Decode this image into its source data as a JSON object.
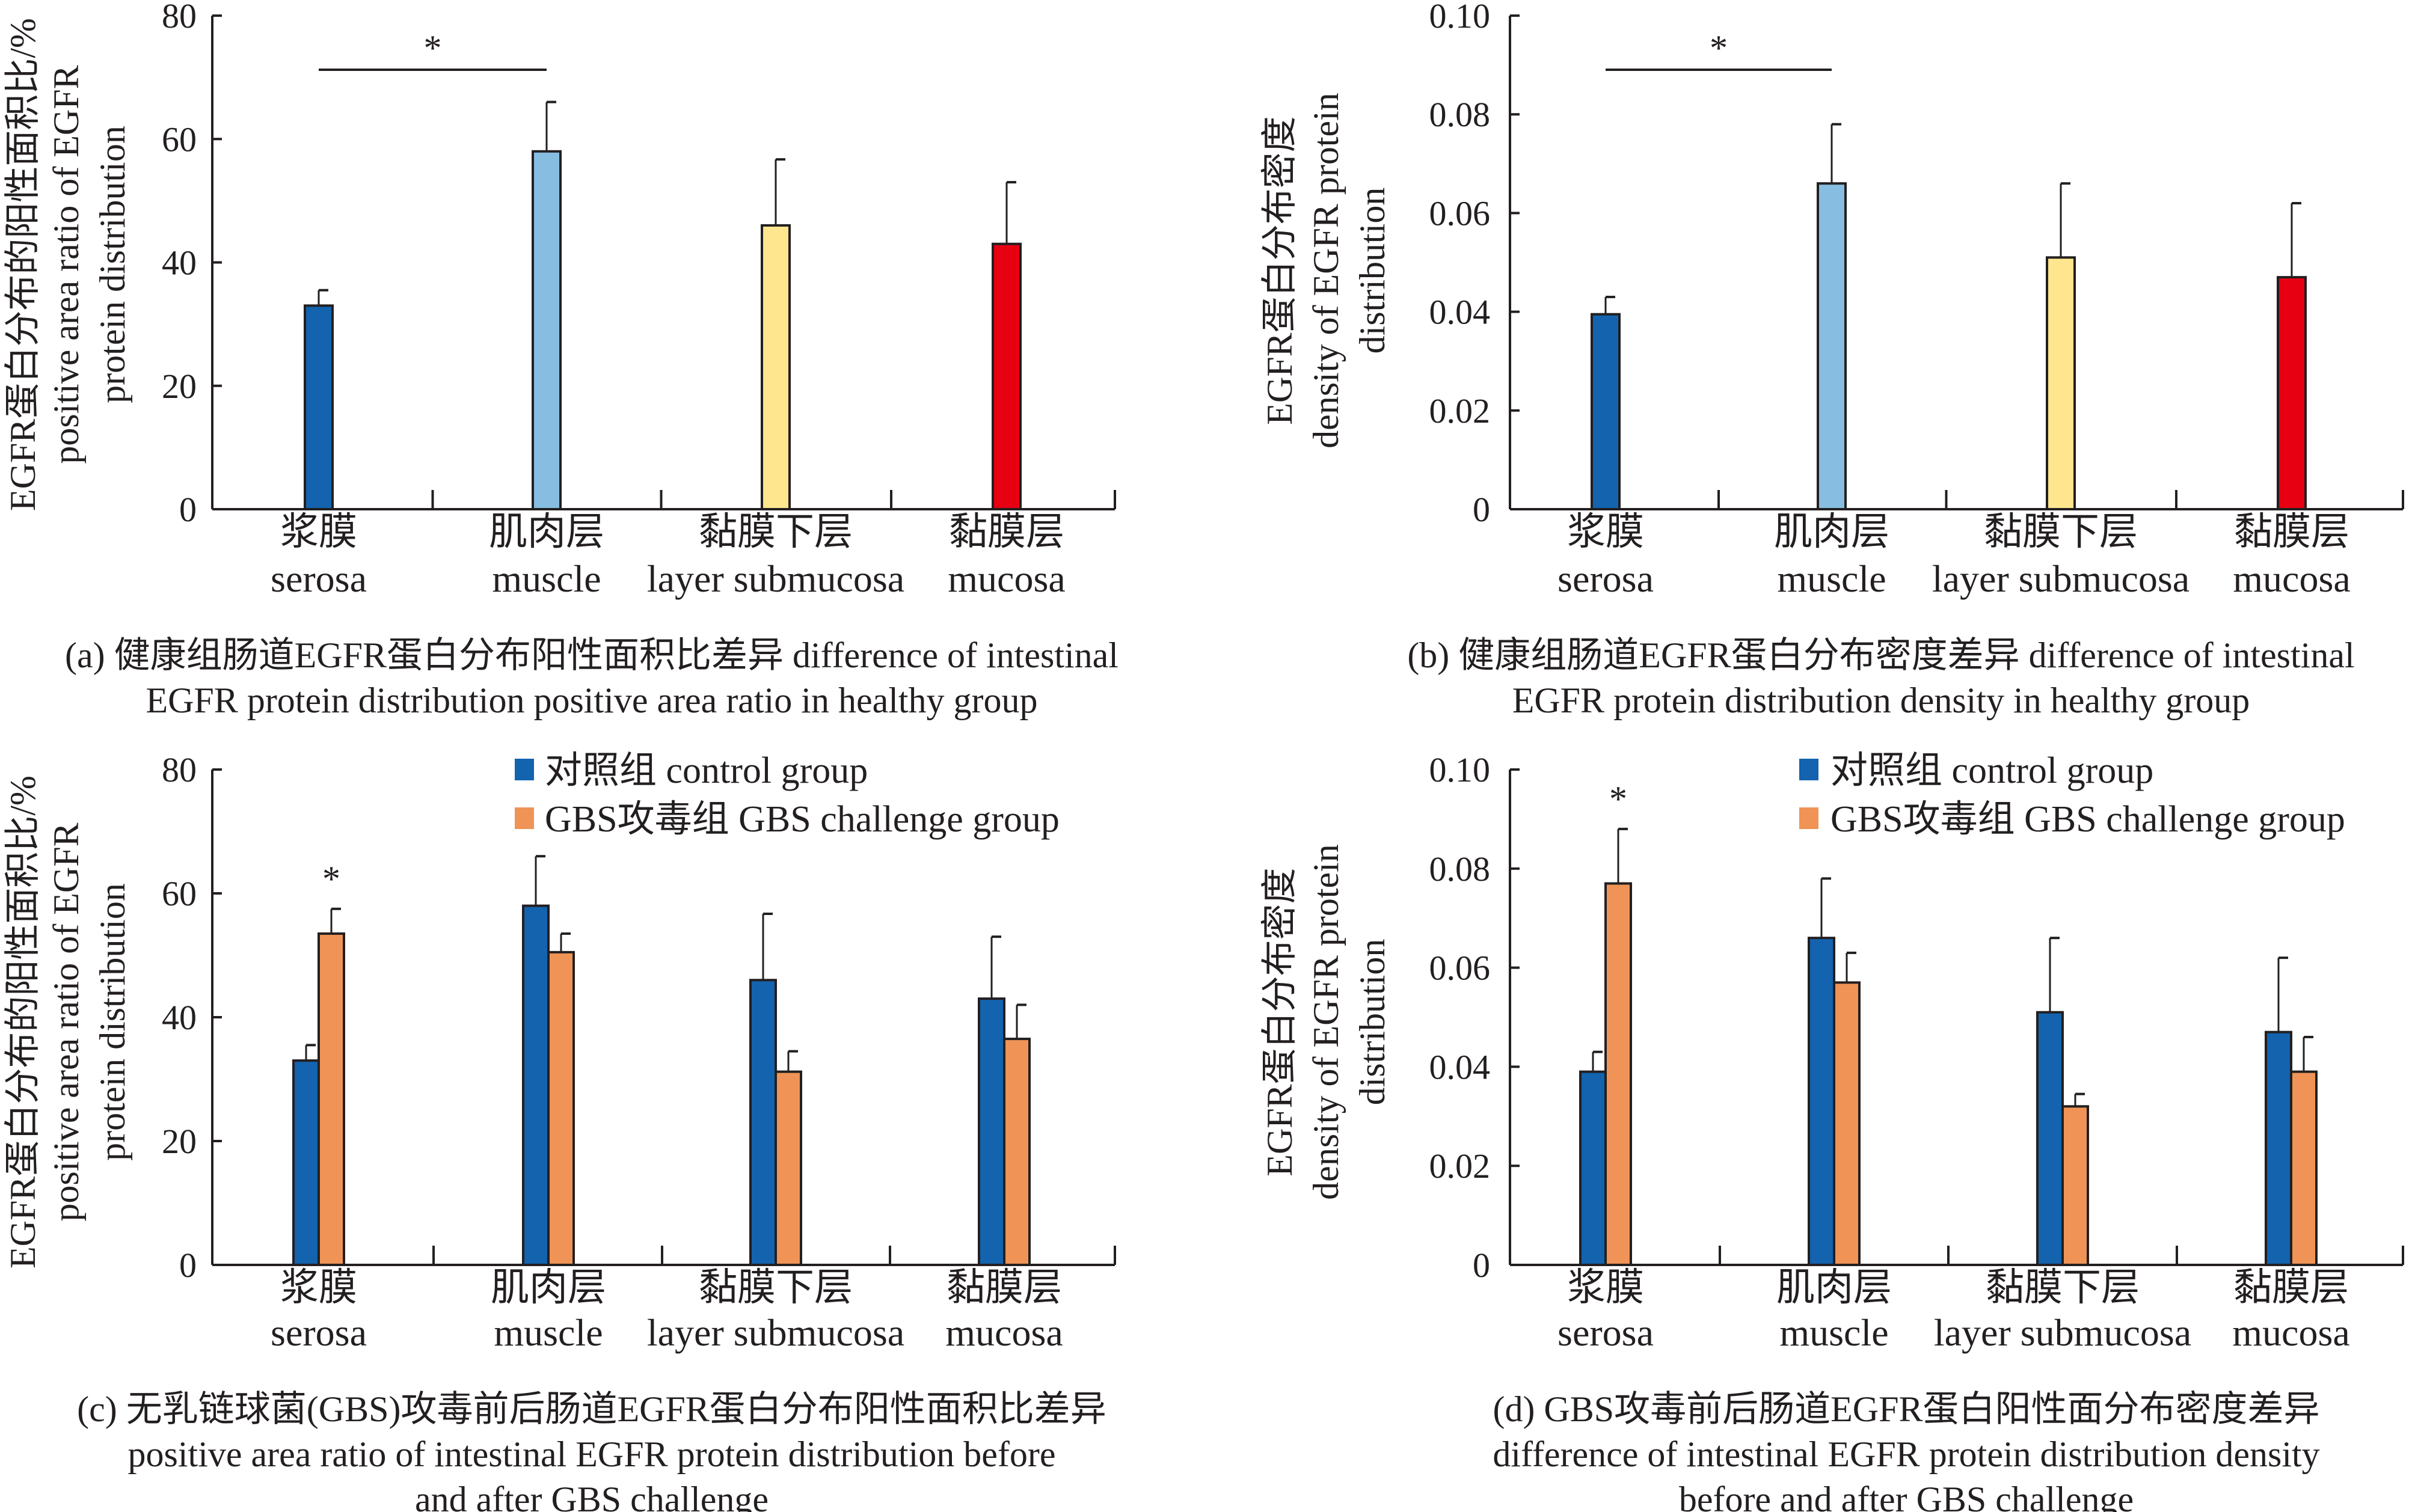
{
  "colors": {
    "control": "#1363ae",
    "gbs": "#ef9456",
    "muscle": "#86bde0",
    "submucosa": "#fde68e",
    "mucosa": "#e60012",
    "axis": "#231f20"
  },
  "categories_zh": [
    "浆膜",
    "肌肉层",
    "黏膜下层",
    "黏膜层"
  ],
  "categories_en": [
    "serosa",
    "muscle",
    "layer submucosa",
    "mucosa"
  ],
  "legend": {
    "control": "对照组 control group",
    "gbs": "GBS攻毒组 GBS challenge group"
  },
  "panels": [
    {
      "ylabel": [
        "EGFR蛋白分布的阳性面积比/%",
        "positive area ratio of EGFR",
        "protein distribution"
      ],
      "caption": [
        "(a) 健康组肠道EGFR蛋白分布阳性面积比差异 difference of intestinal",
        "EGFR protein distribution positive area ratio in healthy group"
      ]
    },
    {
      "ylabel": [
        "EGFR蛋白分布密度",
        "density of EGFR protein",
        "distribution"
      ],
      "caption": [
        "(b) 健康组肠道EGFR蛋白分布密度差异 difference of intestinal",
        "EGFR protein distribution density in healthy group"
      ]
    },
    {
      "ylabel": [
        "EGFR蛋白分布的阳性面积比/%",
        "positive area ratio of EGFR",
        "protein distribution"
      ],
      "caption": [
        "(c) 无乳链球菌(GBS)攻毒前后肠道EGFR蛋白分布阳性面积比差异",
        "positive area ratio of intestinal EGFR protein distribution before",
        "and after GBS challenge"
      ]
    },
    {
      "ylabel": [
        "EGFR蛋白分布密度",
        "density of EGFR protein",
        "distribution"
      ],
      "caption": [
        "(d) GBS攻毒前后肠道EGFR蛋白阳性面分布密度差异",
        "difference of intestinal EGFR protein distribution density",
        "before and after GBS challenge"
      ]
    }
  ],
  "chart_data": [
    {
      "type": "bar",
      "title": "(a)",
      "categories": [
        "浆膜 serosa",
        "肌肉层 muscle",
        "黏膜下层 layer submucosa",
        "黏膜层 mucosa"
      ],
      "ylim": [
        0,
        80
      ],
      "yticks": [
        "0",
        "20",
        "40",
        "60",
        "80"
      ],
      "ytick_values": [
        0,
        20,
        40,
        60,
        80
      ],
      "series": [
        {
          "name": "healthy",
          "values": [
            33,
            58,
            46,
            43
          ],
          "errors": [
            2.5,
            8,
            10.7,
            10
          ]
        }
      ],
      "bar_colors": [
        "#1363ae",
        "#86bde0",
        "#fde68e",
        "#e60012"
      ],
      "significance": [
        {
          "from": 0,
          "to": 1,
          "label": "*"
        }
      ]
    },
    {
      "type": "bar",
      "title": "(b)",
      "categories": [
        "浆膜 serosa",
        "肌肉层 muscle",
        "黏膜下层 layer submucosa",
        "黏膜层 mucosa"
      ],
      "ylim": [
        0,
        0.1
      ],
      "yticks": [
        "0",
        "0.02",
        "0.04",
        "0.06",
        "0.08",
        "0.10"
      ],
      "ytick_values": [
        0,
        0.02,
        0.04,
        0.06,
        0.08,
        0.1
      ],
      "series": [
        {
          "name": "healthy",
          "values": [
            0.0395,
            0.066,
            0.051,
            0.047
          ],
          "errors": [
            0.0035,
            0.012,
            0.015,
            0.015
          ]
        }
      ],
      "bar_colors": [
        "#1363ae",
        "#86bde0",
        "#fde68e",
        "#e60012"
      ],
      "significance": [
        {
          "from": 0,
          "to": 1,
          "label": "*"
        }
      ]
    },
    {
      "type": "bar",
      "title": "(c)",
      "categories": [
        "浆膜 serosa",
        "肌肉层 muscle",
        "黏膜下层 layer submucosa",
        "黏膜层 mucosa"
      ],
      "ylim": [
        0,
        80
      ],
      "yticks": [
        "0",
        "20",
        "40",
        "60",
        "80"
      ],
      "ytick_values": [
        0,
        20,
        40,
        60,
        80
      ],
      "series": [
        {
          "name": "对照组 control group",
          "values": [
            33,
            58,
            46,
            43
          ],
          "errors": [
            2.5,
            8,
            10.7,
            10
          ]
        },
        {
          "name": "GBS攻毒组 GBS challenge group",
          "values": [
            53.5,
            50.5,
            31.2,
            36.5
          ],
          "errors": [
            4,
            3,
            3.3,
            5.5
          ]
        }
      ],
      "legend": "top-center",
      "stars": [
        {
          "category": 0,
          "series": 1,
          "label": "*"
        }
      ]
    },
    {
      "type": "bar",
      "title": "(d)",
      "categories": [
        "浆膜 serosa",
        "肌肉层 muscle",
        "黏膜下层 layer submucosa",
        "黏膜层 mucosa"
      ],
      "ylim": [
        0,
        0.1
      ],
      "yticks": [
        "0",
        "0.02",
        "0.04",
        "0.06",
        "0.08",
        "0.10"
      ],
      "ytick_values": [
        0,
        0.02,
        0.04,
        0.06,
        0.08,
        0.1
      ],
      "series": [
        {
          "name": "对照组 control group",
          "values": [
            0.039,
            0.066,
            0.051,
            0.047
          ],
          "errors": [
            0.004,
            0.012,
            0.015,
            0.015
          ]
        },
        {
          "name": "GBS攻毒组 GBS challenge group",
          "values": [
            0.077,
            0.057,
            0.032,
            0.039
          ],
          "errors": [
            0.011,
            0.006,
            0.0025,
            0.007
          ]
        }
      ],
      "legend": "top-center",
      "stars": [
        {
          "category": 0,
          "series": 1,
          "label": "*"
        }
      ]
    }
  ]
}
